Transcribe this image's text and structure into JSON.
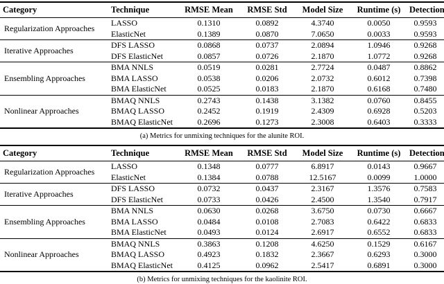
{
  "page": {
    "background": "#ffffff",
    "text_color": "#000000"
  },
  "tables": [
    {
      "caption": "(a) Metrics for unmixing techniques for the alunite ROI.",
      "headers": [
        "Category",
        "Technique",
        "RMSE Mean",
        "RMSE Std",
        "Model Size",
        "Runtime (s)",
        "Detection"
      ],
      "groups": [
        {
          "category": "Regularization Approaches",
          "rows": [
            {
              "technique": "LASSO",
              "values": [
                "0.1310",
                "0.0892",
                "4.3740",
                "0.0050",
                "0.9593"
              ]
            },
            {
              "technique": "ElasticNet",
              "values": [
                "0.1389",
                "0.0870",
                "7.0650",
                "0.0033",
                "0.9593"
              ]
            }
          ]
        },
        {
          "category": "Iterative Approaches",
          "rows": [
            {
              "technique": "DFS LASSO",
              "values": [
                "0.0868",
                "0.0737",
                "2.0894",
                "1.0946",
                "0.9268"
              ]
            },
            {
              "technique": "DFS ElasticNet",
              "values": [
                "0.0857",
                "0.0726",
                "2.1870",
                "1.0772",
                "0.9268"
              ]
            }
          ]
        },
        {
          "category": "Ensembling Approaches",
          "rows": [
            {
              "technique": "BMA NNLS",
              "values": [
                "0.0519",
                "0.0281",
                "2.7724",
                "0.0487",
                "0.8862"
              ]
            },
            {
              "technique": "BMA LASSO",
              "values": [
                "0.0538",
                "0.0206",
                "2.0732",
                "0.6012",
                "0.7398"
              ]
            },
            {
              "technique": "BMA ElasticNet",
              "values": [
                "0.0525",
                "0.0183",
                "2.1870",
                "0.6168",
                "0.7480"
              ]
            }
          ]
        },
        {
          "category": "Nonlinear Approaches",
          "rows": [
            {
              "technique": "BMAQ NNLS",
              "values": [
                "0.2743",
                "0.1438",
                "3.1382",
                "0.0760",
                "0.8455"
              ]
            },
            {
              "technique": "BMAQ LASSO",
              "values": [
                "0.2452",
                "0.1919",
                "2.4309",
                "0.6928",
                "0.5203"
              ]
            },
            {
              "technique": "BMAQ ElasticNet",
              "values": [
                "0.2696",
                "0.1273",
                "2.3008",
                "0.6403",
                "0.3333"
              ]
            }
          ]
        }
      ]
    },
    {
      "caption": "(b) Metrics for unmixing techniques for the kaolinite ROI.",
      "headers": [
        "Category",
        "Technique",
        "RMSE Mean",
        "RMSE Std",
        "Model Size",
        "Runtime (s)",
        "Detection"
      ],
      "groups": [
        {
          "category": "Regularization Approaches",
          "rows": [
            {
              "technique": "LASSO",
              "values": [
                "0.1348",
                "0.0777",
                "6.8917",
                "0.0143",
                "0.9667"
              ]
            },
            {
              "technique": "ElasticNet",
              "values": [
                "0.1384",
                "0.0788",
                "12.5167",
                "0.0099",
                "1.0000"
              ]
            }
          ]
        },
        {
          "category": "Iterative Approaches",
          "rows": [
            {
              "technique": "DFS LASSO",
              "values": [
                "0.0732",
                "0.0437",
                "2.3167",
                "1.3576",
                "0.7583"
              ]
            },
            {
              "technique": "DFS ElasticNet",
              "values": [
                "0.0733",
                "0.0426",
                "2.4500",
                "1.3540",
                "0.7917"
              ]
            }
          ]
        },
        {
          "category": "Ensembling Approaches",
          "rows": [
            {
              "technique": "BMA NNLS",
              "values": [
                "0.0630",
                "0.0268",
                "3.6750",
                "0.0730",
                "0.6667"
              ]
            },
            {
              "technique": "BMA LASSO",
              "values": [
                "0.0484",
                "0.0108",
                "2.7083",
                "0.6422",
                "0.6833"
              ]
            },
            {
              "technique": "BMA ElasticNet",
              "values": [
                "0.0493",
                "0.0124",
                "2.6917",
                "0.6552",
                "0.6833"
              ]
            }
          ]
        },
        {
          "category": "Nonlinear Approaches",
          "rows": [
            {
              "technique": "BMAQ NNLS",
              "values": [
                "0.3863",
                "0.1208",
                "4.6250",
                "0.1529",
                "0.6167"
              ]
            },
            {
              "technique": "BMAQ LASSO",
              "values": [
                "0.4923",
                "0.1832",
                "2.3667",
                "0.6293",
                "0.3000"
              ]
            },
            {
              "technique": "BMAQ ElasticNet",
              "values": [
                "0.4125",
                "0.0962",
                "2.5417",
                "0.6891",
                "0.3000"
              ]
            }
          ]
        }
      ]
    }
  ]
}
